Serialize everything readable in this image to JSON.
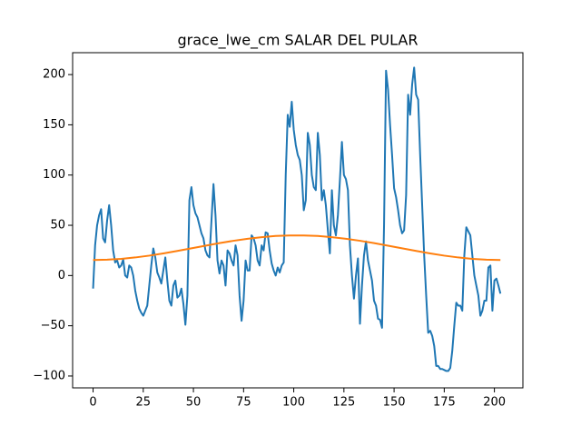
{
  "chart_data": {
    "type": "line",
    "title": "grace_lwe_cm SALAR DEL PULAR",
    "x": [
      0,
      1,
      2,
      3,
      4,
      5,
      6,
      7,
      8,
      9,
      10,
      11,
      12,
      13,
      14,
      15,
      16,
      17,
      18,
      19,
      20,
      21,
      22,
      23,
      24,
      25,
      26,
      27,
      28,
      29,
      30,
      31,
      32,
      33,
      34,
      35,
      36,
      37,
      38,
      39,
      40,
      41,
      42,
      43,
      44,
      45,
      46,
      47,
      48,
      49,
      50,
      51,
      52,
      53,
      54,
      55,
      56,
      57,
      58,
      59,
      60,
      61,
      62,
      63,
      64,
      65,
      66,
      67,
      68,
      69,
      70,
      71,
      72,
      73,
      74,
      75,
      76,
      77,
      78,
      79,
      80,
      81,
      82,
      83,
      84,
      85,
      86,
      87,
      88,
      89,
      90,
      91,
      92,
      93,
      94,
      95,
      96,
      97,
      98,
      99,
      100,
      101,
      102,
      103,
      104,
      105,
      106,
      107,
      108,
      109,
      110,
      111,
      112,
      113,
      114,
      115,
      116,
      117,
      118,
      119,
      120,
      121,
      122,
      123,
      124,
      125,
      126,
      127,
      128,
      129,
      130,
      131,
      132,
      133,
      134,
      135,
      136,
      137,
      138,
      139,
      140,
      141,
      142,
      143,
      144,
      145,
      146,
      147,
      148,
      149,
      150,
      151,
      152,
      153,
      154,
      155,
      156,
      157,
      158,
      159,
      160,
      161,
      162,
      163,
      164,
      165,
      166,
      167,
      168,
      169,
      170,
      171,
      172,
      173,
      174,
      175,
      176,
      177,
      178,
      179,
      180,
      181,
      182,
      183,
      184,
      185,
      186,
      187,
      188,
      189,
      190,
      191,
      192,
      193,
      194,
      195,
      196,
      197,
      198,
      199,
      200,
      201,
      202,
      203
    ],
    "series": [
      {
        "color": "#1f77b4",
        "values": [
          -13,
          30,
          50,
          60,
          66,
          37,
          33,
          55,
          70,
          50,
          25,
          13,
          15,
          8,
          10,
          16,
          0,
          -2,
          10,
          8,
          0,
          -15,
          -25,
          -33,
          -37,
          -40,
          -35,
          -30,
          -10,
          10,
          27,
          18,
          3,
          -2,
          -8,
          5,
          18,
          -5,
          -25,
          -30,
          -10,
          -5,
          -22,
          -20,
          -13,
          -28,
          -49,
          -20,
          75,
          88,
          70,
          62,
          58,
          50,
          42,
          37,
          25,
          20,
          18,
          55,
          91,
          60,
          15,
          2,
          15,
          10,
          -10,
          25,
          22,
          15,
          10,
          30,
          20,
          -20,
          -45,
          -25,
          15,
          5,
          5,
          40,
          37,
          30,
          15,
          10,
          30,
          25,
          43,
          42,
          25,
          12,
          5,
          0,
          8,
          3,
          10,
          13,
          100,
          160,
          148,
          173,
          145,
          130,
          120,
          115,
          100,
          65,
          75,
          142,
          130,
          100,
          88,
          85,
          142,
          120,
          75,
          85,
          70,
          45,
          22,
          85,
          50,
          40,
          60,
          95,
          133,
          100,
          96,
          85,
          30,
          0,
          -23,
          0,
          17,
          -48,
          -10,
          20,
          34,
          15,
          5,
          -5,
          -25,
          -30,
          -43,
          -44,
          -52,
          50,
          204,
          185,
          150,
          120,
          87,
          78,
          65,
          50,
          42,
          45,
          80,
          180,
          160,
          190,
          207,
          180,
          175,
          120,
          70,
          20,
          -20,
          -57,
          -55,
          -60,
          -70,
          -90,
          -90,
          -93,
          -93,
          -94,
          -95,
          -95,
          -92,
          -75,
          -50,
          -27,
          -30,
          -30,
          -35,
          20,
          48,
          44,
          40,
          20,
          0,
          -10,
          -20,
          -40,
          -35,
          -25,
          -25,
          8,
          10,
          -35,
          -5,
          -3,
          -10,
          -18
        ]
      },
      {
        "color": "#ff7f0e",
        "x": [
          0,
          7,
          14,
          21,
          28,
          35,
          42,
          49,
          56,
          63,
          70,
          77,
          84,
          91,
          98,
          105,
          112,
          119,
          126,
          133,
          140,
          147,
          154,
          161,
          168,
          175,
          182,
          189,
          196,
          203
        ],
        "values": [
          15.5,
          15.8,
          16.6,
          18.0,
          19.8,
          22.0,
          24.5,
          27.1,
          29.7,
          32.3,
          34.6,
          36.6,
          38.2,
          39.4,
          39.9,
          39.9,
          39.4,
          38.2,
          36.6,
          34.6,
          32.3,
          29.7,
          27.1,
          24.5,
          22.0,
          19.8,
          18.0,
          16.6,
          15.8,
          15.5
        ]
      }
    ],
    "xlim": [
      -10.2,
      214.2
    ],
    "ylim": [
      -111.8,
      221.8
    ],
    "xticks": [
      0,
      25,
      50,
      75,
      100,
      125,
      150,
      175,
      200
    ],
    "yticks": [
      {
        "value": -100,
        "label": "−100"
      },
      {
        "value": -50,
        "label": "−50"
      },
      0,
      50,
      100,
      150,
      200
    ]
  }
}
